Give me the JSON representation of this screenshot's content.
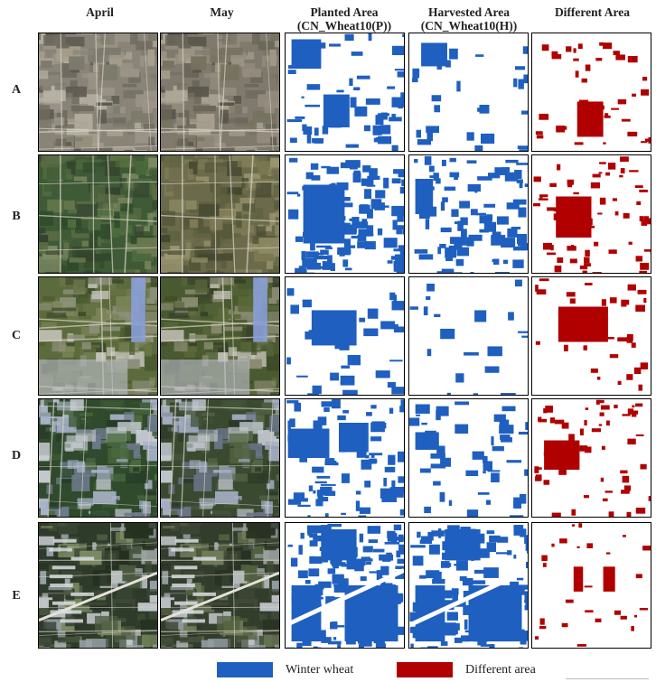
{
  "columns": [
    {
      "title_line1": "April",
      "title_line2": ""
    },
    {
      "title_line1": "May",
      "title_line2": ""
    },
    {
      "title_line1": "Planted Area",
      "title_line2": "(CN_Wheat10(P))"
    },
    {
      "title_line1": "Harvested Area",
      "title_line2": "(CN_Wheat10(H))"
    },
    {
      "title_line1": "Different Area",
      "title_line2": ""
    }
  ],
  "rows": [
    "A",
    "B",
    "C",
    "D",
    "E"
  ],
  "legend": [
    {
      "label": "Winter wheat",
      "color": "#1f5fbf",
      "icon": "legend-swatch-blue"
    },
    {
      "label": "Different area",
      "color": "#b00000",
      "icon": "legend-swatch-red"
    }
  ],
  "colors": {
    "wheat": "#1f5fbf",
    "difference": "#b00000",
    "background": "#ffffff"
  }
}
